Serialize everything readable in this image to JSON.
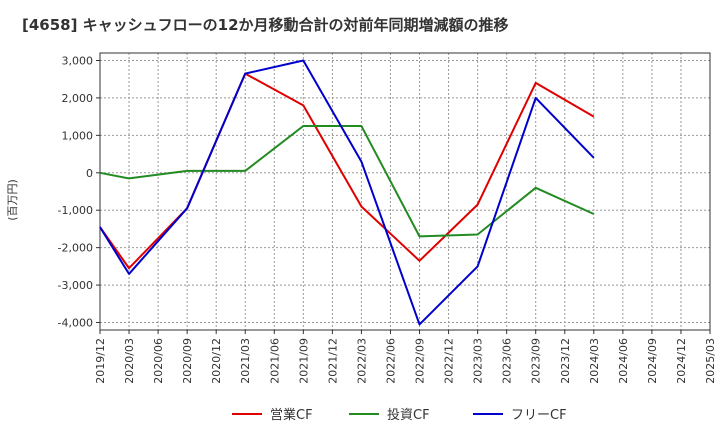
{
  "chart_data": {
    "type": "line",
    "title": "[4658]  キャッシュフローの12か月移動合計の対前年同期増減額の推移",
    "ylabel": "(百万円)",
    "xlabel": "",
    "ylim": [
      -4200,
      3200
    ],
    "yticks": [
      3000,
      2000,
      1000,
      0,
      -1000,
      -2000,
      -3000,
      -4000
    ],
    "ytick_labels": [
      "3,000",
      "2,000",
      "1,000",
      "0",
      "-1,000",
      "-2,000",
      "-3,000",
      "-4,000"
    ],
    "x_categories": [
      "2019/12",
      "2020/03",
      "2020/06",
      "2020/09",
      "2020/12",
      "2021/03",
      "2021/06",
      "2021/09",
      "2021/12",
      "2022/03",
      "2022/06",
      "2022/09",
      "2022/12",
      "2023/03",
      "2023/06",
      "2023/09",
      "2023/12",
      "2024/03",
      "2024/06",
      "2024/09",
      "2024/12",
      "2025/03"
    ],
    "grid": true,
    "legend_position": "bottom",
    "series": [
      {
        "name": "営業CF",
        "color": "#e00000",
        "x": [
          "2019/12",
          "2020/03",
          "2020/09",
          "2021/03",
          "2021/09",
          "2022/03",
          "2022/09",
          "2023/03",
          "2023/09",
          "2024/03"
        ],
        "values": [
          -1450,
          -2550,
          -950,
          2650,
          1800,
          -900,
          -2350,
          -850,
          2400,
          1500
        ]
      },
      {
        "name": "投資CF",
        "color": "#228b22",
        "x": [
          "2019/12",
          "2020/03",
          "2020/09",
          "2021/03",
          "2021/09",
          "2022/03",
          "2022/09",
          "2023/03",
          "2023/09",
          "2024/03"
        ],
        "values": [
          0,
          -150,
          50,
          50,
          1250,
          1250,
          -1700,
          -1650,
          -400,
          -1100
        ]
      },
      {
        "name": "フリーCF",
        "color": "#0000cc",
        "x": [
          "2019/12",
          "2020/03",
          "2020/09",
          "2021/03",
          "2021/09",
          "2022/03",
          "2022/09",
          "2023/03",
          "2023/09",
          "2024/03"
        ],
        "values": [
          -1450,
          -2700,
          -950,
          2650,
          3000,
          300,
          -4050,
          -2500,
          2000,
          400
        ]
      }
    ]
  }
}
